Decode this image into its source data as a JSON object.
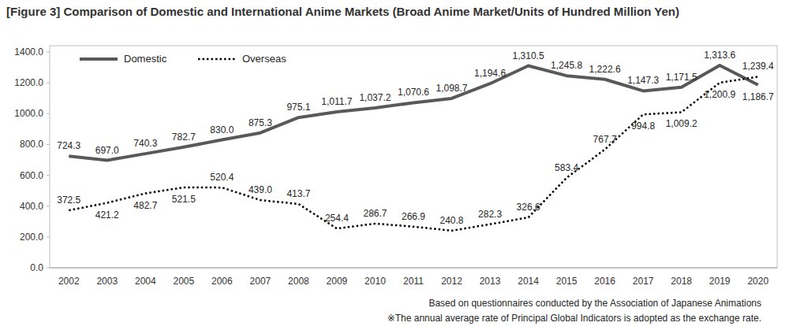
{
  "chart_data": {
    "type": "line",
    "title": "[Figure 3] Comparison of Domestic and International Anime Markets (Broad Anime Market/Units of Hundred Million Yen)",
    "annotations": [
      "Based on questionnaires conducted by the Association of Japanese Animations",
      "※The annual average rate of Principal Global Indicators is adopted as the exchange rate."
    ],
    "categories": [
      "2002",
      "2003",
      "2004",
      "2005",
      "2006",
      "2007",
      "2008",
      "2009",
      "2010",
      "2011",
      "2012",
      "2013",
      "2014",
      "2015",
      "2016",
      "2017",
      "2018",
      "2019",
      "2020"
    ],
    "series": [
      {
        "name": "Domestic",
        "color": "#595959",
        "line_style": "solid",
        "values": [
          724.3,
          697.0,
          740.3,
          782.7,
          830.0,
          875.3,
          975.1,
          1011.7,
          1037.2,
          1070.6,
          1098.7,
          1194.6,
          1310.5,
          1245.8,
          1222.6,
          1147.3,
          1171.5,
          1313.6,
          1186.7
        ],
        "value_labels": [
          "724.3",
          "697.0",
          "740.3",
          "782.7",
          "830.0",
          "875.3",
          "975.1",
          "1,011.7",
          "1,037.2",
          "1,070.6",
          "1,098.7",
          "1,194.6",
          "1,310.5",
          "1,245.8",
          "1,222.6",
          "1,147.3",
          "1,171.5",
          "1,313.6",
          "1,186.7"
        ]
      },
      {
        "name": "Overseas",
        "color": "#000000",
        "line_style": "dotted",
        "values": [
          372.5,
          421.2,
          482.7,
          521.5,
          520.4,
          439.0,
          413.7,
          254.4,
          286.7,
          266.9,
          240.8,
          282.3,
          326.6,
          583.4,
          767.7,
          994.8,
          1009.2,
          1200.9,
          1239.4
        ],
        "value_labels": [
          "372.5",
          "421.2",
          "482.7",
          "521.5",
          "520.4",
          "439.0",
          "413.7",
          "254.4",
          "286.7",
          "266.9",
          "240.8",
          "282.3",
          "326.6",
          "583.4",
          "767.7",
          "994.8",
          "1,009.2",
          "1,200.9",
          "1,239.4"
        ]
      }
    ],
    "ylim": [
      0,
      1400
    ],
    "yticks": [
      {
        "value": 0,
        "label": "0.0"
      },
      {
        "value": 200,
        "label": "200.0"
      },
      {
        "value": 400,
        "label": "400.0"
      },
      {
        "value": 600,
        "label": "600.0"
      },
      {
        "value": 800,
        "label": "800.0"
      },
      {
        "value": 1000,
        "label": "1000.0"
      },
      {
        "value": 1200,
        "label": "1200.0"
      },
      {
        "value": 1400,
        "label": "1400.0"
      }
    ],
    "grid": false,
    "legend": "upper left",
    "data_labels": true
  }
}
